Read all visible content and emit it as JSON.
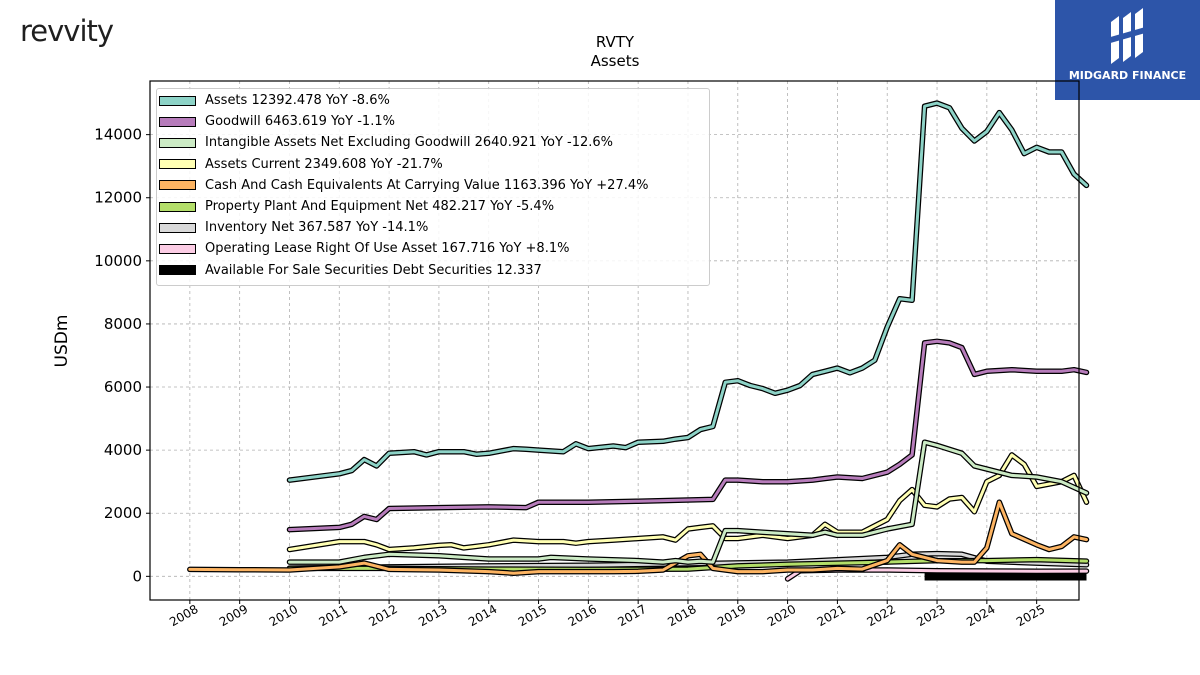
{
  "brand": {
    "logo_text": "revvity",
    "badge_text": "MIDGARD FINANCE"
  },
  "chart_data": {
    "type": "line",
    "title": "RVTY",
    "subtitle": "Assets",
    "ylabel": "USDm",
    "xlabel": "",
    "ylim": [
      -750,
      15700
    ],
    "xlim": [
      2007.2,
      2025.85
    ],
    "yticks": [
      0,
      2000,
      4000,
      6000,
      8000,
      10000,
      12000,
      14000
    ],
    "xticks": [
      2008,
      2009,
      2010,
      2011,
      2012,
      2013,
      2014,
      2015,
      2016,
      2017,
      2018,
      2019,
      2020,
      2021,
      2022,
      2023,
      2024,
      2025
    ],
    "grid": true,
    "legend_position": "top-left",
    "series": [
      {
        "name": "Assets",
        "legend_label": "Assets  12392.478 YoY -8.6%",
        "color": "#8dd3c7",
        "points": [
          [
            2010,
            3050
          ],
          [
            2011,
            3250
          ],
          [
            2011.25,
            3350
          ],
          [
            2011.5,
            3700
          ],
          [
            2011.75,
            3500
          ],
          [
            2012,
            3900
          ],
          [
            2012.5,
            3950
          ],
          [
            2012.75,
            3850
          ],
          [
            2013,
            3950
          ],
          [
            2013.5,
            3950
          ],
          [
            2013.75,
            3870
          ],
          [
            2014,
            3900
          ],
          [
            2014.5,
            4050
          ],
          [
            2014.75,
            4030
          ],
          [
            2015,
            4000
          ],
          [
            2015.5,
            3950
          ],
          [
            2015.75,
            4200
          ],
          [
            2016,
            4050
          ],
          [
            2016.5,
            4130
          ],
          [
            2016.75,
            4080
          ],
          [
            2017,
            4250
          ],
          [
            2017.5,
            4280
          ],
          [
            2017.75,
            4350
          ],
          [
            2018,
            4400
          ],
          [
            2018.25,
            4650
          ],
          [
            2018.5,
            4750
          ],
          [
            2018.75,
            6150
          ],
          [
            2019,
            6200
          ],
          [
            2019.25,
            6050
          ],
          [
            2019.5,
            5950
          ],
          [
            2019.75,
            5800
          ],
          [
            2020,
            5900
          ],
          [
            2020.25,
            6050
          ],
          [
            2020.5,
            6400
          ],
          [
            2020.75,
            6500
          ],
          [
            2021,
            6600
          ],
          [
            2021.25,
            6450
          ],
          [
            2021.5,
            6600
          ],
          [
            2021.75,
            6850
          ],
          [
            2022,
            7900
          ],
          [
            2022.25,
            8800
          ],
          [
            2022.5,
            8750
          ],
          [
            2022.75,
            14900
          ],
          [
            2023,
            15000
          ],
          [
            2023.25,
            14850
          ],
          [
            2023.5,
            14200
          ],
          [
            2023.75,
            13800
          ],
          [
            2024,
            14100
          ],
          [
            2024.25,
            14700
          ],
          [
            2024.5,
            14150
          ],
          [
            2024.75,
            13400
          ],
          [
            2025,
            13600
          ],
          [
            2025.25,
            13450
          ],
          [
            2025.5,
            13450
          ],
          [
            2025.75,
            12750
          ],
          [
            2026,
            12392
          ]
        ]
      },
      {
        "name": "Goodwill",
        "legend_label": "Goodwill  6463.619 YoY -1.1%",
        "color": "#b77cbb",
        "points": [
          [
            2010,
            1480
          ],
          [
            2011,
            1550
          ],
          [
            2011.25,
            1650
          ],
          [
            2011.5,
            1900
          ],
          [
            2011.75,
            1800
          ],
          [
            2012,
            2150
          ],
          [
            2013,
            2180
          ],
          [
            2014,
            2200
          ],
          [
            2014.75,
            2180
          ],
          [
            2015,
            2350
          ],
          [
            2016,
            2350
          ],
          [
            2017,
            2380
          ],
          [
            2017.5,
            2400
          ],
          [
            2018,
            2420
          ],
          [
            2018.5,
            2440
          ],
          [
            2018.75,
            3050
          ],
          [
            2019,
            3050
          ],
          [
            2019.5,
            3000
          ],
          [
            2020,
            3000
          ],
          [
            2020.5,
            3050
          ],
          [
            2020.75,
            3100
          ],
          [
            2021,
            3150
          ],
          [
            2021.5,
            3100
          ],
          [
            2022,
            3300
          ],
          [
            2022.25,
            3550
          ],
          [
            2022.5,
            3850
          ],
          [
            2022.75,
            7400
          ],
          [
            2023,
            7450
          ],
          [
            2023.25,
            7400
          ],
          [
            2023.5,
            7250
          ],
          [
            2023.75,
            6400
          ],
          [
            2024,
            6500
          ],
          [
            2024.5,
            6550
          ],
          [
            2025,
            6500
          ],
          [
            2025.5,
            6500
          ],
          [
            2025.75,
            6550
          ],
          [
            2026,
            6463
          ]
        ]
      },
      {
        "name": "Intangible Assets Net Excluding Goodwill",
        "legend_label": "Intangible Assets Net Excluding Goodwill  2640.921 YoY -12.6%",
        "color": "#ccebc5",
        "points": [
          [
            2010,
            450
          ],
          [
            2011,
            450
          ],
          [
            2011.5,
            600
          ],
          [
            2012,
            700
          ],
          [
            2013,
            650
          ],
          [
            2014,
            550
          ],
          [
            2015,
            550
          ],
          [
            2015.25,
            600
          ],
          [
            2016,
            550
          ],
          [
            2017,
            500
          ],
          [
            2017.5,
            450
          ],
          [
            2017.75,
            500
          ],
          [
            2018,
            450
          ],
          [
            2018.25,
            480
          ],
          [
            2018.5,
            450
          ],
          [
            2018.75,
            1450
          ],
          [
            2019,
            1450
          ],
          [
            2019.5,
            1400
          ],
          [
            2020,
            1350
          ],
          [
            2020.5,
            1300
          ],
          [
            2020.75,
            1400
          ],
          [
            2021,
            1300
          ],
          [
            2021.5,
            1300
          ],
          [
            2022,
            1500
          ],
          [
            2022.5,
            1650
          ],
          [
            2022.75,
            4250
          ],
          [
            2023,
            4150
          ],
          [
            2023.5,
            3900
          ],
          [
            2023.75,
            3500
          ],
          [
            2024,
            3400
          ],
          [
            2024.5,
            3200
          ],
          [
            2025,
            3150
          ],
          [
            2025.5,
            3000
          ],
          [
            2026,
            2640
          ]
        ]
      },
      {
        "name": "Assets Current",
        "legend_label": "Assets Current  2349.608 YoY -21.7%",
        "color": "#ffffb3",
        "points": [
          [
            2010,
            850
          ],
          [
            2011,
            1100
          ],
          [
            2011.5,
            1100
          ],
          [
            2011.75,
            1000
          ],
          [
            2012,
            850
          ],
          [
            2012.5,
            900
          ],
          [
            2013,
            980
          ],
          [
            2013.25,
            1000
          ],
          [
            2013.5,
            900
          ],
          [
            2013.75,
            950
          ],
          [
            2014,
            1000
          ],
          [
            2014.5,
            1150
          ],
          [
            2015,
            1100
          ],
          [
            2015.5,
            1100
          ],
          [
            2015.75,
            1050
          ],
          [
            2016,
            1100
          ],
          [
            2016.5,
            1150
          ],
          [
            2017,
            1200
          ],
          [
            2017.5,
            1250
          ],
          [
            2017.75,
            1150
          ],
          [
            2018,
            1500
          ],
          [
            2018.25,
            1550
          ],
          [
            2018.5,
            1600
          ],
          [
            2018.75,
            1200
          ],
          [
            2019,
            1200
          ],
          [
            2019.5,
            1300
          ],
          [
            2020,
            1200
          ],
          [
            2020.5,
            1300
          ],
          [
            2020.75,
            1650
          ],
          [
            2021,
            1400
          ],
          [
            2021.5,
            1400
          ],
          [
            2022,
            1800
          ],
          [
            2022.25,
            2400
          ],
          [
            2022.5,
            2750
          ],
          [
            2022.75,
            2250
          ],
          [
            2023,
            2200
          ],
          [
            2023.25,
            2450
          ],
          [
            2023.5,
            2500
          ],
          [
            2023.75,
            2050
          ],
          [
            2024,
            3000
          ],
          [
            2024.25,
            3200
          ],
          [
            2024.5,
            3850
          ],
          [
            2024.75,
            3550
          ],
          [
            2025,
            2850
          ],
          [
            2025.5,
            3000
          ],
          [
            2025.75,
            3200
          ],
          [
            2026,
            2349
          ]
        ]
      },
      {
        "name": "Cash And Cash Equivalents At Carrying Value",
        "legend_label": "Cash And Cash Equivalents At Carrying Value  1163.396 YoY +27.4%",
        "color": "#fdb462",
        "points": [
          [
            2008,
            220
          ],
          [
            2009,
            210
          ],
          [
            2010,
            200
          ],
          [
            2011,
            300
          ],
          [
            2011.5,
            420
          ],
          [
            2012,
            220
          ],
          [
            2013,
            200
          ],
          [
            2014,
            150
          ],
          [
            2014.5,
            100
          ],
          [
            2015,
            150
          ],
          [
            2016,
            150
          ],
          [
            2016.5,
            150
          ],
          [
            2017,
            160
          ],
          [
            2017.5,
            200
          ],
          [
            2018,
            650
          ],
          [
            2018.25,
            700
          ],
          [
            2018.5,
            250
          ],
          [
            2018.75,
            200
          ],
          [
            2019,
            150
          ],
          [
            2019.5,
            150
          ],
          [
            2020,
            200
          ],
          [
            2020.5,
            200
          ],
          [
            2021,
            250
          ],
          [
            2021.5,
            230
          ],
          [
            2022,
            500
          ],
          [
            2022.25,
            1000
          ],
          [
            2022.5,
            700
          ],
          [
            2023,
            500
          ],
          [
            2023.5,
            450
          ],
          [
            2023.75,
            450
          ],
          [
            2024,
            900
          ],
          [
            2024.25,
            2350
          ],
          [
            2024.5,
            1350
          ],
          [
            2025,
            1000
          ],
          [
            2025.25,
            850
          ],
          [
            2025.5,
            950
          ],
          [
            2025.75,
            1250
          ],
          [
            2026,
            1163
          ]
        ]
      },
      {
        "name": "Property Plant And Equipment Net",
        "legend_label": "Property Plant And Equipment Net  482.217 YoY -5.4%",
        "color": "#b3de69",
        "points": [
          [
            2010,
            250
          ],
          [
            2012,
            250
          ],
          [
            2014,
            230
          ],
          [
            2016,
            220
          ],
          [
            2018,
            230
          ],
          [
            2019,
            330
          ],
          [
            2020,
            380
          ],
          [
            2022,
            450
          ],
          [
            2023,
            500
          ],
          [
            2024,
            500
          ],
          [
            2025,
            530
          ],
          [
            2026,
            482
          ]
        ]
      },
      {
        "name": "Inventory Net",
        "legend_label": "Inventory Net  367.587 YoY -14.1%",
        "color": "#d9d9d9",
        "points": [
          [
            2010,
            260
          ],
          [
            2012,
            300
          ],
          [
            2014,
            330
          ],
          [
            2016,
            350
          ],
          [
            2018,
            400
          ],
          [
            2020,
            450
          ],
          [
            2022,
            600
          ],
          [
            2022.5,
            700
          ],
          [
            2023,
            720
          ],
          [
            2023.5,
            700
          ],
          [
            2024,
            480
          ],
          [
            2025,
            420
          ],
          [
            2026,
            367
          ]
        ]
      },
      {
        "name": "Operating Lease Right Of Use Asset",
        "legend_label": "Operating Lease Right Of Use Asset  167.716 YoY +8.1%",
        "color": "#fccde5",
        "points": [
          [
            2020,
            -80
          ],
          [
            2020.25,
            180
          ],
          [
            2021,
            200
          ],
          [
            2022,
            200
          ],
          [
            2023,
            180
          ],
          [
            2024,
            170
          ],
          [
            2025,
            160
          ],
          [
            2026,
            167
          ]
        ]
      },
      {
        "name": "Available For Sale Securities Debt Securities",
        "legend_label": "Available For Sale Securities Debt Securities  12.337",
        "color": "#000000",
        "points": [
          [
            2022.75,
            12
          ],
          [
            2026,
            12
          ]
        ]
      }
    ]
  }
}
